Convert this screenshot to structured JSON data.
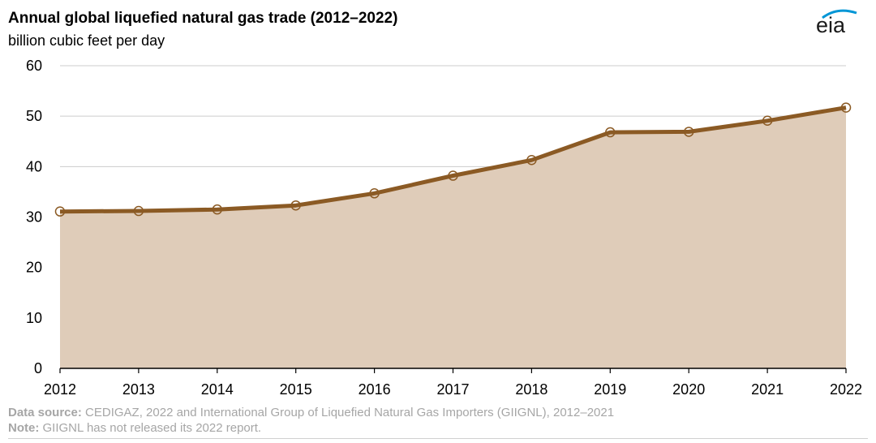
{
  "chart_data": {
    "type": "area",
    "title": "Annual global liquefied natural gas trade (2012–2022)",
    "ylabel": "billion cubic feet per day",
    "xlabel": "",
    "x": [
      "2012",
      "2013",
      "2014",
      "2015",
      "2016",
      "2017",
      "2018",
      "2019",
      "2020",
      "2021",
      "2022"
    ],
    "values": [
      31.1,
      31.2,
      31.5,
      32.3,
      34.7,
      38.2,
      41.3,
      46.8,
      46.9,
      49.1,
      51.7
    ],
    "ylim": [
      0,
      60
    ],
    "yticks": [
      "0",
      "10",
      "20",
      "30",
      "40",
      "50",
      "60"
    ],
    "grid": true,
    "colors": {
      "line": "#8b5a24",
      "fill": "#dfccb9",
      "grid": "#cccccc",
      "axis": "#000000"
    }
  },
  "branding": {
    "logo_text": "eia"
  },
  "footer": {
    "source_label": "Data source:",
    "source_text": " CEDIGAZ, 2022 and International Group of Liquefied Natural Gas Importers (GIIGNL), 2012–2021",
    "note_label": "Note:",
    "note_text": " GIIGNL has not released its 2022 report."
  }
}
